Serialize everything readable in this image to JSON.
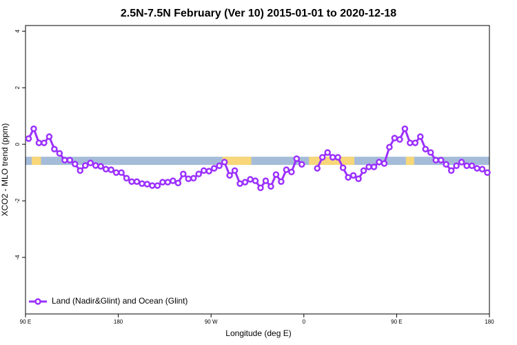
{
  "chart_data": {
    "type": "line",
    "title": "2.5N-7.5N February (Ver 10)   2015-01-01 to 2020-12-18",
    "xlabel": "Longitude (deg E)",
    "ylabel": "XCO2 - MLO trend (ppm)",
    "xlim": [
      90,
      540
    ],
    "ylim": [
      -6,
      4.2
    ],
    "xticks": [
      {
        "value": 90,
        "label": "90 E"
      },
      180,
      {
        "value": 270,
        "label": "90 W"
      },
      {
        "value": 360,
        "label": "0"
      },
      {
        "value": 450,
        "label": "90 E"
      },
      {
        "value": 540,
        "label": "180"
      }
    ],
    "yticks": [
      4,
      2,
      0,
      -2,
      -4
    ],
    "band": {
      "ymin": -0.73,
      "ymax": -0.44,
      "color": "#a5bcd9",
      "land_color": "#f7d77a",
      "land_segments": [
        [
          96,
          105
        ],
        [
          281,
          309
        ],
        [
          365,
          409
        ],
        [
          459,
          467
        ]
      ]
    },
    "legend": "bottom-left",
    "x": [
      93,
      98,
      103,
      108,
      113,
      118,
      123,
      128,
      133,
      138,
      143,
      148,
      153,
      158,
      163,
      168,
      173,
      178,
      183,
      188,
      193,
      198,
      203,
      208,
      213,
      218,
      223,
      228,
      233,
      238,
      243,
      248,
      253,
      258,
      263,
      268,
      273,
      278,
      283,
      288,
      293,
      298,
      303,
      308,
      313,
      318,
      323,
      328,
      333,
      338,
      343,
      348,
      353,
      358,
      363,
      368,
      373,
      378,
      383,
      388,
      393,
      398,
      403,
      408,
      413,
      418,
      423,
      428,
      433,
      438,
      443,
      448,
      453,
      458,
      463,
      468,
      473,
      478,
      483,
      488,
      493,
      498,
      503,
      508,
      513,
      518,
      523,
      528,
      533,
      538
    ],
    "series": [
      {
        "name": "Land (Nadir&Glint) and Ocean (Glint)",
        "color": "#9b30ff",
        "values": [
          0.2,
          0.55,
          0.05,
          0.05,
          0.27,
          -0.17,
          -0.32,
          -0.56,
          -0.56,
          -0.7,
          -0.93,
          -0.75,
          -0.66,
          -0.75,
          -0.78,
          -0.88,
          -0.9,
          -1.0,
          -1.0,
          -1.2,
          -1.32,
          -1.32,
          -1.39,
          -1.41,
          -1.46,
          -1.46,
          -1.34,
          -1.34,
          -1.29,
          -1.37,
          -1.05,
          -1.22,
          -1.2,
          -1.05,
          -0.93,
          -0.95,
          -0.85,
          -0.76,
          -0.63,
          -1.1,
          -0.93,
          -1.39,
          -1.34,
          -1.24,
          -1.29,
          -1.54,
          -1.29,
          -1.49,
          -1.07,
          -1.32,
          -0.9,
          -0.98,
          -0.51,
          -0.71,
          null,
          null,
          -0.85,
          -0.46,
          -0.29,
          -0.46,
          -0.46,
          -0.83,
          -1.17,
          -1.1,
          -1.22,
          -0.93,
          -0.8,
          -0.8,
          -0.63,
          -0.68,
          -0.1,
          0.22,
          0.17,
          0.55,
          0.05,
          0.05,
          0.27,
          -0.17,
          -0.29,
          -0.56,
          -0.56,
          -0.71,
          -0.93,
          -0.76,
          -0.63,
          -0.76,
          -0.76,
          -0.85,
          -0.88,
          -1.0
        ]
      }
    ]
  }
}
